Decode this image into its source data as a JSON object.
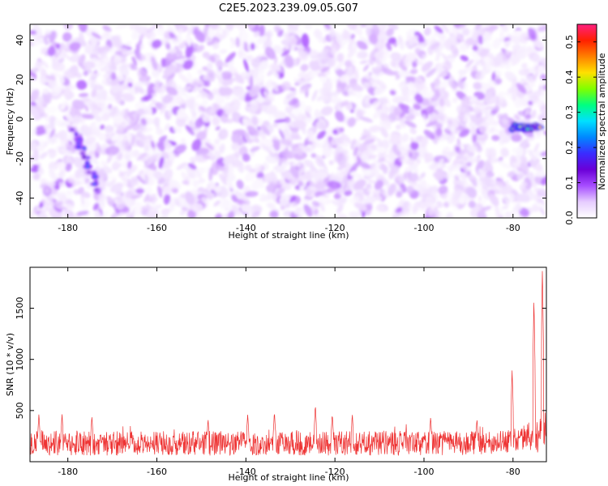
{
  "chart_data": [
    {
      "type": "heatmap",
      "title": "C2E5.2023.239.09.05.G07",
      "xlabel": "Height of straight line (km)",
      "ylabel": "Frequency (Hz)",
      "xlim": [
        -188.5,
        -72.5
      ],
      "ylim": [
        -50,
        48
      ],
      "xticks": [
        -180,
        -160,
        -140,
        -120,
        -100,
        -80
      ],
      "yticks": [
        -40,
        -20,
        0,
        20,
        40
      ],
      "colorbar": {
        "label": "Normalized spectral amplitude",
        "range": [
          0.0,
          0.55
        ],
        "ticks": [
          0.0,
          0.1,
          0.2,
          0.3,
          0.4,
          0.5
        ],
        "colors": [
          "#ffffff",
          "#e6ccff",
          "#a64dff",
          "#6a00d8",
          "#3a2cff",
          "#0088ff",
          "#00e0ff",
          "#00ff80",
          "#80ff00",
          "#ffe000",
          "#ff8000",
          "#ff2000",
          "#ff2080"
        ]
      },
      "features": [
        {
          "name": "diagonal streak",
          "x": [
            -179,
            -176,
            -173
          ],
          "y": [
            -5,
            -20,
            -37
          ],
          "amplitude": 0.22
        },
        {
          "name": "bright cluster",
          "x": [
            -80,
            -78,
            -76,
            -74
          ],
          "y": [
            -4,
            -4,
            -4,
            -4
          ],
          "amplitude": 0.45
        }
      ],
      "background_amplitude": 0.06,
      "grid": false
    },
    {
      "type": "line",
      "title": "",
      "xlabel": "Height of straight line (km)",
      "ylabel": "SNR (10 * v/v)",
      "xlim": [
        -188.5,
        -72.5
      ],
      "ylim": [
        0,
        1900
      ],
      "xticks": [
        -180,
        -160,
        -140,
        -120,
        -100,
        -80
      ],
      "yticks": [
        500,
        1000,
        1500
      ],
      "series": [
        {
          "color": "#ee3333",
          "baseline_low": 60,
          "baseline_high": 300,
          "peaks": [
            {
              "x": -186.5,
              "y": 470
            },
            {
              "x": -181.3,
              "y": 470
            },
            {
              "x": -174.6,
              "y": 450
            },
            {
              "x": -148.5,
              "y": 420
            },
            {
              "x": -139.6,
              "y": 470
            },
            {
              "x": -133.6,
              "y": 490
            },
            {
              "x": -124.4,
              "y": 560
            },
            {
              "x": -120.6,
              "y": 470
            },
            {
              "x": -116.1,
              "y": 470
            },
            {
              "x": -98.5,
              "y": 440
            },
            {
              "x": -88.1,
              "y": 420
            },
            {
              "x": -80.2,
              "y": 900
            },
            {
              "x": -75.3,
              "y": 1600
            },
            {
              "x": -73.4,
              "y": 1900
            }
          ]
        }
      ],
      "grid": false
    }
  ]
}
